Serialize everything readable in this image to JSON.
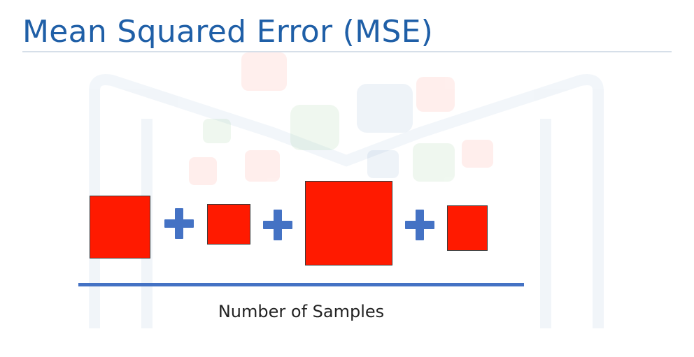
{
  "slide": {
    "title": "Mean Squared Error (MSE)",
    "caption": "Number of Samples"
  },
  "colors": {
    "title": "#1f5fa7",
    "error_square": "#ff1a00",
    "plus_sign": "#4472c4",
    "divider_line": "#4472c4",
    "title_rule": "#d6dfe9"
  },
  "icons": {
    "plus": "plus-icon",
    "error_square": "squared-error-icon"
  }
}
